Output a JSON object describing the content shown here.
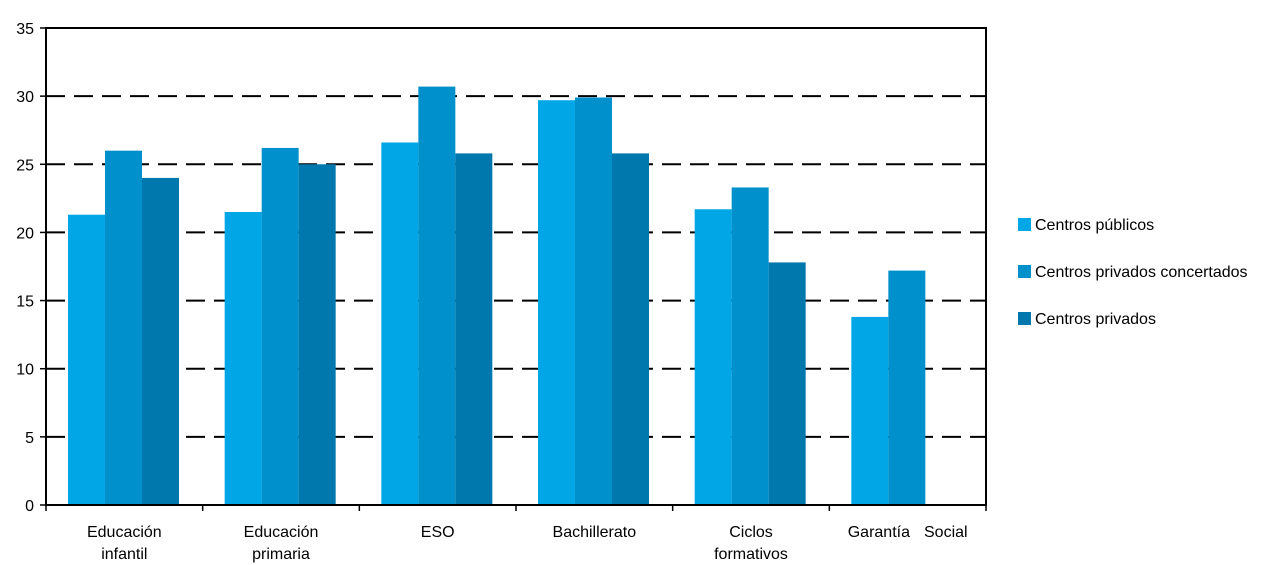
{
  "chart_data": {
    "type": "bar",
    "categories": [
      [
        "Educación",
        "infantil"
      ],
      [
        "Educación",
        "primaria"
      ],
      [
        "ESO"
      ],
      [
        "Bachillerato"
      ],
      [
        "Ciclos",
        "formativos"
      ],
      [
        "Garantía",
        "Social"
      ]
    ],
    "series": [
      {
        "name": "Centros públicos",
        "color": "#00A6E6",
        "values": [
          21.3,
          21.5,
          26.6,
          29.7,
          21.7,
          13.8
        ]
      },
      {
        "name": "Centros privados concertados",
        "color": "#0090CC",
        "values": [
          26.0,
          26.2,
          30.7,
          29.9,
          23.3,
          17.2
        ]
      },
      {
        "name": "Centros privados",
        "color": "#0078AE",
        "values": [
          24.0,
          25.0,
          25.8,
          25.8,
          17.8,
          null
        ]
      }
    ],
    "ylim": [
      0,
      35
    ],
    "yticks": [
      0,
      5,
      10,
      15,
      20,
      25,
      30,
      35
    ],
    "grid": "dashed horizontal",
    "legend_position": "right",
    "title": "",
    "xlabel": "",
    "ylabel": ""
  }
}
